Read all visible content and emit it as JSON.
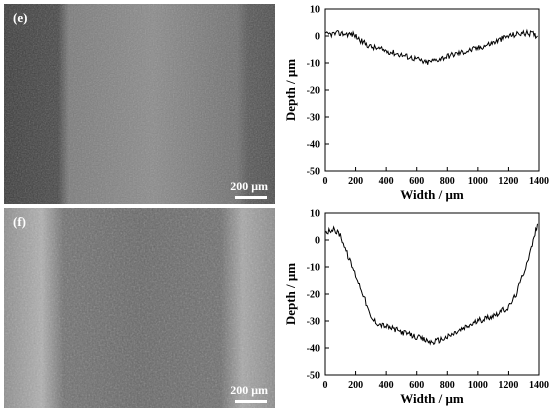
{
  "panels": [
    {
      "label": "(e)",
      "scale_text": "200 μm"
    },
    {
      "label": "(f)",
      "scale_text": "200 μm"
    }
  ],
  "chart_data": [
    {
      "type": "line",
      "xlabel": "Width / μm",
      "ylabel": "Depth / μm",
      "xlim": [
        0,
        1400
      ],
      "ylim": [
        -50,
        10
      ],
      "xticks": [
        0,
        200,
        400,
        600,
        800,
        1000,
        1200,
        1400
      ],
      "yticks": [
        10,
        0,
        -10,
        -20,
        -30,
        -40,
        -50
      ],
      "series": [
        {
          "color": "#000000",
          "x": [
            0,
            100,
            190,
            240,
            300,
            400,
            500,
            600,
            660,
            720,
            800,
            900,
            1000,
            1100,
            1200,
            1280,
            1350,
            1390
          ],
          "y": [
            0.5,
            1,
            0.5,
            -2,
            -4,
            -5.5,
            -7,
            -8.5,
            -10,
            -9,
            -7.5,
            -6,
            -4.5,
            -2.5,
            0,
            1,
            1,
            0
          ]
        }
      ]
    },
    {
      "type": "line",
      "xlabel": "Width / μm",
      "ylabel": "Depth / μm",
      "xlim": [
        0,
        1400
      ],
      "ylim": [
        -50,
        10
      ],
      "xticks": [
        0,
        200,
        400,
        600,
        800,
        1000,
        1200,
        1400
      ],
      "yticks": [
        10,
        0,
        -10,
        -20,
        -30,
        -40,
        -50
      ],
      "series": [
        {
          "color": "#000000",
          "x": [
            0,
            50,
            100,
            150,
            200,
            250,
            300,
            350,
            400,
            500,
            600,
            700,
            800,
            900,
            1000,
            1100,
            1200,
            1250,
            1300,
            1350,
            1390
          ],
          "y": [
            3,
            4,
            2,
            -6,
            -13,
            -20,
            -29,
            -31,
            -32,
            -34,
            -36,
            -38,
            -36,
            -33,
            -30,
            -28,
            -25,
            -20,
            -12,
            -3,
            6
          ]
        }
      ]
    }
  ]
}
